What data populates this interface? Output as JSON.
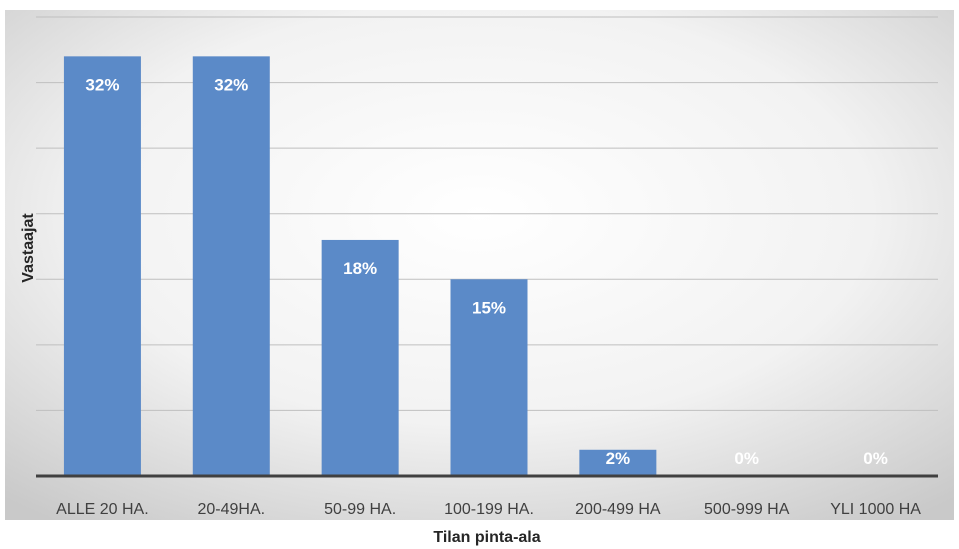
{
  "chart_data": {
    "type": "bar",
    "categories": [
      "ALLE 20 HA.",
      "20-49HA.",
      "50-99 HA.",
      "100-199 HA.",
      "200-499 HA",
      "500-999 HA",
      "YLI 1000 HA"
    ],
    "values": [
      32,
      32,
      18,
      15,
      2,
      0,
      0
    ],
    "data_labels": [
      "32%",
      "32%",
      "18%",
      "15%",
      "2%",
      "0%",
      "0%"
    ],
    "xlabel": "Tilan pinta-ala",
    "ylabel": "Vastaajat",
    "ylim": [
      0,
      35
    ],
    "grid": true,
    "bar_color": "#5b8ac8",
    "label_color": "#ffffff",
    "axis_color": "#404040",
    "grid_color": "#bfbfbf"
  }
}
